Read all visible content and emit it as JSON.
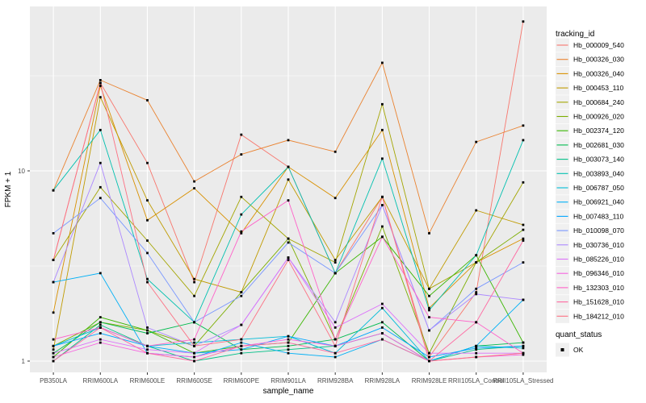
{
  "figure": {
    "x_axis_title": "sample_name",
    "y_axis_title": "FPKM + 1",
    "legend": {
      "tracking_title": "tracking_id",
      "quant_title": "quant_status",
      "quant_ok_label": "OK",
      "quant_marker_color": "#000000"
    },
    "panel_bg": "#EBEBEB",
    "grid_color": "#FFFFFF",
    "key_bg": "#F0F0F0",
    "point_color": "#000000",
    "tick_text_color": "#4d4d4d"
  },
  "chart_data": {
    "type": "line",
    "title": "",
    "xlabel": "sample_name",
    "ylabel": "FPKM + 1",
    "y_scale": "log10",
    "y_tick_labels": [
      "1",
      "10"
    ],
    "y_ticks": [
      1,
      10
    ],
    "y_minor_ticks": [
      3.162,
      31.62
    ],
    "ylim": [
      0.87,
      73
    ],
    "grid": "on",
    "legend_position": "right",
    "point_marker": "black-square",
    "quant_status": "OK",
    "categories": [
      "PB350LA",
      "RRIM600LA",
      "RRIM600LE",
      "RRIM600SE",
      "RRIM600PE",
      "RRIM901LA",
      "RRIM928BA",
      "RRIM928LA",
      "RRIM928LE",
      "RRII105LA_Control",
      "RRII105LA_Stressed"
    ],
    "series": [
      {
        "name": "Hb_000009_540",
        "color": "#F8766D",
        "values": [
          3.4,
          29,
          11,
          2.6,
          15.5,
          10.5,
          2.9,
          7.3,
          1.05,
          2.3,
          61
        ]
      },
      {
        "name": "Hb_000326_030",
        "color": "#EA8331",
        "values": [
          7.9,
          30,
          23.5,
          8.8,
          12.2,
          14.5,
          12.6,
          37,
          4.7,
          14.2,
          17.3
        ]
      },
      {
        "name": "Hb_000326_040",
        "color": "#D89000",
        "values": [
          1.8,
          28,
          5.5,
          8.1,
          4.7,
          10.5,
          7.2,
          16.4,
          1.9,
          3.3,
          4.4
        ]
      },
      {
        "name": "Hb_000453_110",
        "color": "#C09B00",
        "values": [
          1.15,
          24.4,
          7.0,
          2.7,
          2.3,
          9.0,
          3.4,
          7.3,
          2.4,
          6.2,
          5.2
        ]
      },
      {
        "name": "Hb_000684_240",
        "color": "#A3A500",
        "values": [
          3.4,
          8.2,
          4.3,
          2.2,
          7.3,
          4.4,
          3.3,
          22.4,
          2.4,
          3.3,
          8.7
        ]
      },
      {
        "name": "Hb_000926_020",
        "color": "#7CAE00",
        "values": [
          1.2,
          1.6,
          1.45,
          1.2,
          2.3,
          4.4,
          1.3,
          5.1,
          1.1,
          3.3,
          4.9
        ]
      },
      {
        "name": "Hb_002374_120",
        "color": "#39B600",
        "values": [
          1.05,
          1.7,
          1.45,
          1.1,
          1.2,
          1.25,
          2.9,
          4.5,
          2.2,
          3.6,
          1.25
        ]
      },
      {
        "name": "Hb_002681_030",
        "color": "#00BB4E",
        "values": [
          1.1,
          1.6,
          1.4,
          1.6,
          1.15,
          1.2,
          1.3,
          1.6,
          1.0,
          1.2,
          1.25
        ]
      },
      {
        "name": "Hb_003073_140",
        "color": "#00C087",
        "values": [
          1.0,
          1.55,
          1.2,
          1.0,
          1.1,
          1.15,
          1.2,
          1.4,
          1.0,
          1.15,
          1.2
        ]
      },
      {
        "name": "Hb_003893_040",
        "color": "#00C0AF",
        "values": [
          7.9,
          16.4,
          2.7,
          1.6,
          5.9,
          10.5,
          2.9,
          11.6,
          1.85,
          3.6,
          14.5
        ]
      },
      {
        "name": "Hb_006787_050",
        "color": "#00BCD8",
        "values": [
          1.2,
          1.5,
          1.2,
          1.25,
          1.3,
          1.35,
          1.1,
          1.9,
          1.0,
          1.2,
          1.17
        ]
      },
      {
        "name": "Hb_006921_040",
        "color": "#00B0F6",
        "values": [
          2.6,
          2.9,
          1.1,
          1.05,
          1.25,
          1.1,
          1.05,
          1.3,
          1.0,
          1.2,
          2.1
        ]
      },
      {
        "name": "Hb_007483_110",
        "color": "#00A5FF",
        "values": [
          1.2,
          1.4,
          1.2,
          1.1,
          1.15,
          1.35,
          1.2,
          1.5,
          1.05,
          1.17,
          1.2
        ]
      },
      {
        "name": "Hb_010098_070",
        "color": "#7997FF",
        "values": [
          4.7,
          7.2,
          3.7,
          1.6,
          2.2,
          4.2,
          2.9,
          6.6,
          1.45,
          2.4,
          3.3
        ]
      },
      {
        "name": "Hb_030736_010",
        "color": "#AC88FF",
        "values": [
          2.6,
          11,
          1.5,
          1.2,
          1.55,
          3.5,
          1.6,
          6.6,
          1.45,
          2.25,
          2.1
        ]
      },
      {
        "name": "Hb_085226_010",
        "color": "#DC71FA",
        "values": [
          1.1,
          1.3,
          1.15,
          1.1,
          1.55,
          3.5,
          1.5,
          2.0,
          1.1,
          1.1,
          1.1
        ]
      },
      {
        "name": "Hb_096346_010",
        "color": "#F763E0",
        "values": [
          1.05,
          1.25,
          1.1,
          1.05,
          1.2,
          1.3,
          1.2,
          1.4,
          1.0,
          1.05,
          1.08
        ]
      },
      {
        "name": "Hb_132303_010",
        "color": "#FF61C9",
        "values": [
          1.3,
          1.5,
          1.2,
          1.3,
          4.8,
          7.0,
          1.3,
          4.5,
          1.7,
          1.6,
          1.1
        ]
      },
      {
        "name": "Hb_151628_010",
        "color": "#FF68A1",
        "values": [
          1.0,
          1.5,
          1.1,
          1.0,
          1.2,
          1.25,
          1.1,
          1.3,
          1.0,
          1.6,
          4.3
        ]
      },
      {
        "name": "Hb_184212_010",
        "color": "#FD7083",
        "values": [
          3.4,
          29,
          2.6,
          1.2,
          1.3,
          3.4,
          1.2,
          7.3,
          1.0,
          1.05,
          1.1
        ]
      }
    ]
  }
}
